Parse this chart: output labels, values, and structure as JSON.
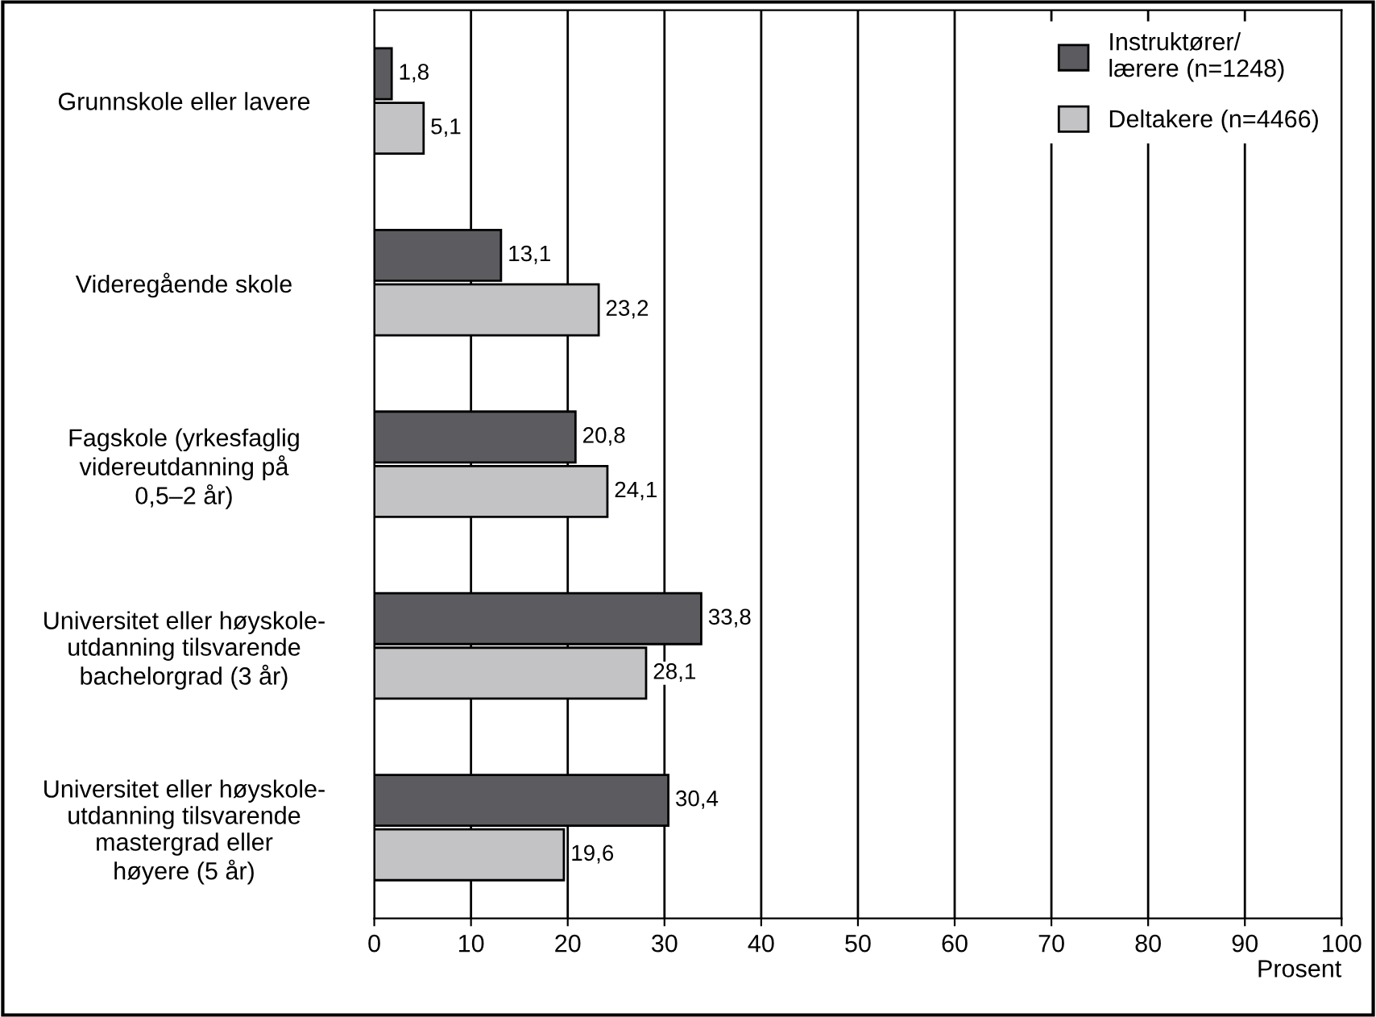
{
  "chart_data": {
    "type": "bar",
    "orientation": "horizontal",
    "xlabel": "Prosent",
    "categories": [
      "Grunnskole eller lavere",
      "Videregående skole",
      "Fagskole (yrkesfaglig\nvidereutdanning på\n0,5–2 år)",
      "Universitet eller høyskole-\nutdanning tilsvarende\nbachelorgrad (3 år)",
      "Universitet eller høyskole-\nutdanning tilsvarende\nmastergrad eller\nhøyere (5 år)"
    ],
    "series": [
      {
        "name": "Instruktører/\nlærere (n=1248)",
        "color": "#5b5b60",
        "values": [
          1.8,
          13.1,
          20.8,
          33.8,
          30.4
        ],
        "value_labels": [
          "1,8",
          "13,1",
          "20,8",
          "33,8",
          "30,4"
        ]
      },
      {
        "name": "Deltakere (n=4466)",
        "color": "#c3c3c5",
        "values": [
          5.1,
          23.2,
          24.1,
          28.1,
          19.6
        ],
        "value_labels": [
          "5,1",
          "23,2",
          "24,1",
          "28,1",
          "19,6"
        ]
      }
    ],
    "xlim": [
      0,
      100
    ],
    "xticks": [
      0,
      10,
      20,
      30,
      40,
      50,
      60,
      70,
      80,
      90,
      100
    ],
    "grid": "x",
    "legend": "top right"
  }
}
